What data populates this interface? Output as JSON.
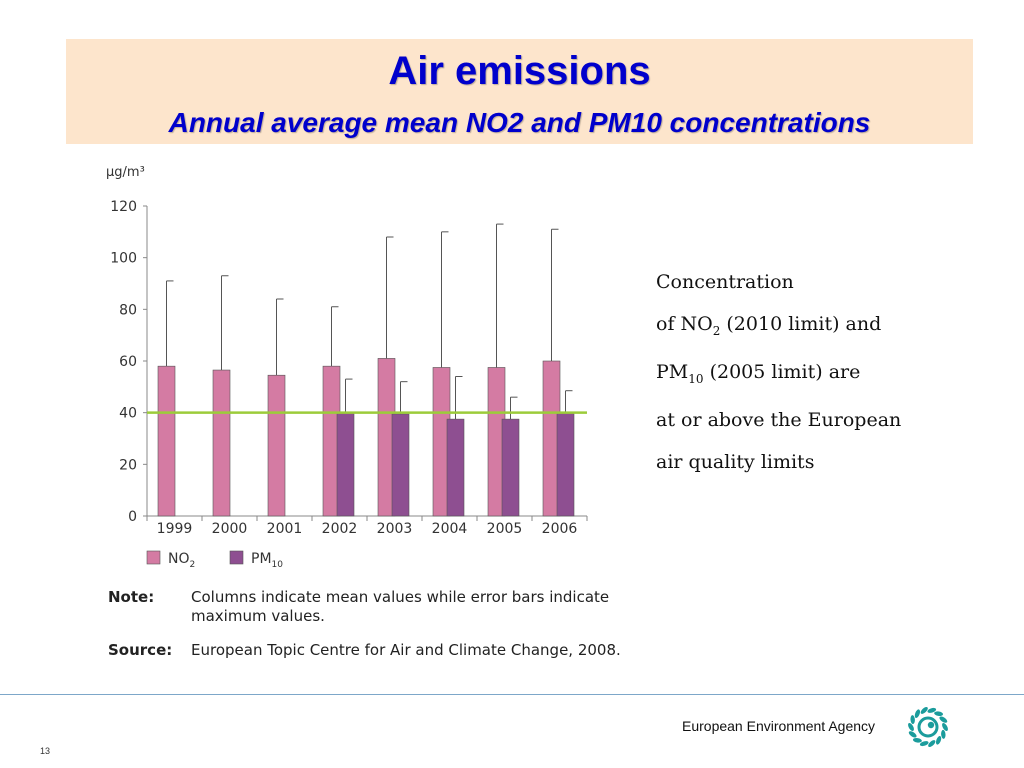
{
  "header": {
    "title": "Air emissions",
    "subtitle": "Annual average mean NO2 and PM10 concentrations"
  },
  "chart_data": {
    "type": "bar",
    "unit_label": "µg/m³",
    "categories": [
      "1999",
      "2000",
      "2001",
      "2002",
      "2003",
      "2004",
      "2005",
      "2006"
    ],
    "series": [
      {
        "name": "NO",
        "sub": "2",
        "color": "#d47ba3",
        "values": [
          58,
          56.5,
          54.5,
          58,
          61,
          57.5,
          57.5,
          60
        ],
        "max": [
          91,
          93,
          84,
          81,
          108,
          110,
          113,
          111
        ]
      },
      {
        "name": "PM",
        "sub": "10",
        "color": "#8e4f91",
        "values": [
          null,
          null,
          null,
          40,
          39.5,
          37.5,
          37.5,
          40
        ],
        "max": [
          null,
          null,
          null,
          53,
          52,
          54,
          46,
          48.5
        ]
      }
    ],
    "limit_line": 40,
    "limit_color": "#9ccc3a",
    "ylim": [
      0,
      120
    ],
    "yticks": [
      0,
      20,
      40,
      60,
      80,
      100,
      120
    ],
    "legend_position": "bottom-left"
  },
  "notes": [
    {
      "label": "Note:",
      "text": "Columns indicate mean values while error bars indicate maximum values."
    },
    {
      "label": "Source:",
      "text": "European Topic Centre for Air and Climate Change, 2008."
    }
  ],
  "side_text": {
    "l1": "Concentration",
    "l2a": "of NO",
    "l2sub": "2",
    "l2b": " (2010 limit) and",
    "l3a": "PM",
    "l3sub": "10",
    "l3b": " (2005 limit) are",
    "l4": "at or above the European",
    "l5": "air quality limits"
  },
  "footer": {
    "agency": "European Environment Agency",
    "page": "13"
  },
  "colors": {
    "title": "#0000cc",
    "band": "#fde5cc",
    "logo": "#1b9c9c"
  }
}
